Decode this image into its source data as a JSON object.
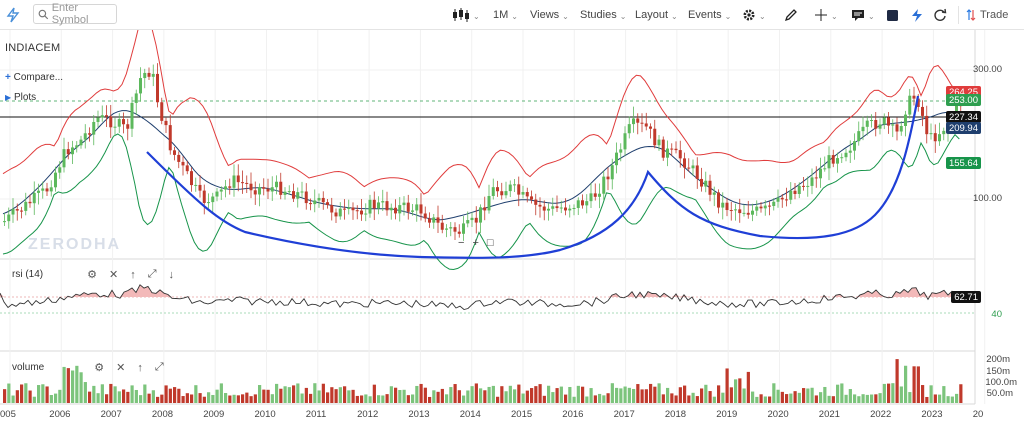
{
  "toolbar": {
    "search_placeholder": "Enter Symbol",
    "interval": "1M",
    "views": "Views",
    "studies": "Studies",
    "layout": "Layout",
    "events": "Events",
    "trade": "Trade"
  },
  "chart": {
    "symbol": "INDIACEM",
    "compare": "Compare...",
    "plots": "Plots",
    "watermark": "ZERODHA",
    "price_ticks": [
      "300.00",
      "100.00"
    ],
    "tags": {
      "upper": "264.25",
      "last": "253.00",
      "cross": "227.34",
      "mid": "209.94",
      "lower": "155.64"
    },
    "colors": {
      "up": "#5cb85c",
      "down": "#c0392b",
      "upper": "#e03c3c",
      "last": "#2e9e4f",
      "cross": "#111111",
      "mid": "#1f3f6e",
      "lower": "#17944a"
    }
  },
  "rsi": {
    "label": "rsi (14)",
    "value": "62.71",
    "level": "40"
  },
  "volume": {
    "label": "volume",
    "ticks": [
      "200m",
      "150m",
      "100.0m",
      "50.0m"
    ]
  },
  "xaxis": [
    "005",
    "2006",
    "2007",
    "2008",
    "2009",
    "2010",
    "2011",
    "2012",
    "2013",
    "2014",
    "2015",
    "2016",
    "2017",
    "2018",
    "2019",
    "2020",
    "2021",
    "2022",
    "2023",
    "20"
  ]
}
